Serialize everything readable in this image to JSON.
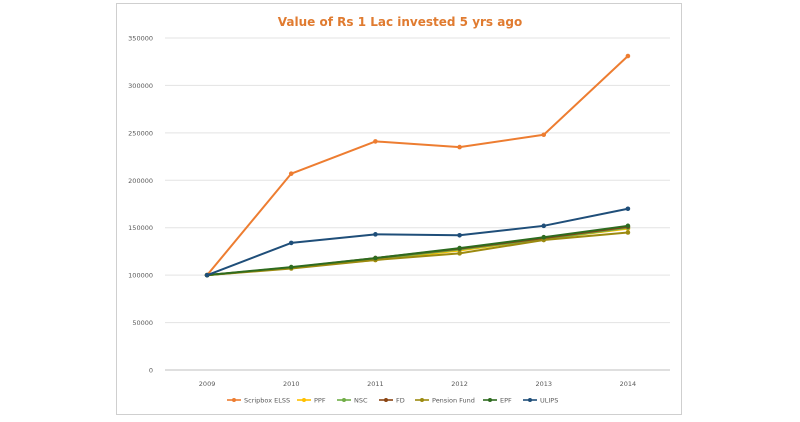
{
  "chart_data": {
    "type": "line",
    "title": "Value of Rs 1 Lac invested 5 yrs ago",
    "xlabel": "",
    "ylabel": "",
    "categories": [
      "2009",
      "2010",
      "2011",
      "2012",
      "2013",
      "2014"
    ],
    "ylim": [
      0,
      350000
    ],
    "yticks": [
      "0",
      "50000",
      "100000",
      "150000",
      "200000",
      "250000",
      "300000",
      "350000"
    ],
    "grid": true,
    "legend_position": "bottom",
    "series": [
      {
        "name": "Scripbox ELSS",
        "color": "#ed7d31",
        "values": [
          100000,
          207000,
          241000,
          235000,
          248000,
          331000
        ]
      },
      {
        "name": "PPF",
        "color": "#ffc000",
        "values": [
          100000,
          108000,
          116000,
          126000,
          138000,
          149000
        ]
      },
      {
        "name": "NSC",
        "color": "#70ad47",
        "values": [
          100000,
          108000,
          117000,
          127000,
          138000,
          150000
        ]
      },
      {
        "name": "FD",
        "color": "#8b4513",
        "values": [
          100000,
          108000,
          118000,
          128000,
          139000,
          151000
        ]
      },
      {
        "name": "Pension Fund",
        "color": "#9c8a10",
        "values": [
          100000,
          107000,
          116000,
          123000,
          137000,
          145000
        ]
      },
      {
        "name": "EPF",
        "color": "#2e6b1f",
        "values": [
          100000,
          108500,
          118000,
          128500,
          140000,
          152000
        ]
      },
      {
        "name": "ULIPS",
        "color": "#1f4e79",
        "values": [
          100000,
          134000,
          143000,
          142000,
          152000,
          170000
        ]
      }
    ]
  }
}
